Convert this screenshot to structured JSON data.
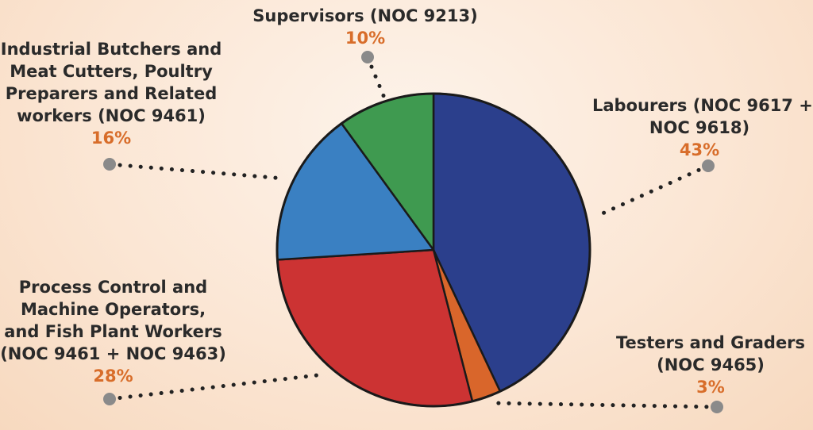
{
  "chart_data": {
    "type": "pie",
    "slices": [
      {
        "label_lines": [
          "Labourers (NOC 9617 +",
          "NOC 9618)"
        ],
        "pct_label": "43%",
        "value": 43,
        "color": "#2b3f8c"
      },
      {
        "label_lines": [
          "Testers and Graders",
          "(NOC 9465)"
        ],
        "pct_label": "3%",
        "value": 3,
        "color": "#d9662b"
      },
      {
        "label_lines": [
          "Process Control and",
          "Machine Operators,",
          "and Fish Plant Workers",
          "(NOC 9461 + NOC 9463)"
        ],
        "pct_label": "28%",
        "value": 28,
        "color": "#cc3333"
      },
      {
        "label_lines": [
          "Industrial Butchers and",
          "Meat Cutters, Poultry",
          "Preparers and Related",
          "workers (NOC 9461)"
        ],
        "pct_label": "16%",
        "value": 16,
        "color": "#3a80c2"
      },
      {
        "label_lines": [
          "Supervisors (NOC 9213)"
        ],
        "pct_label": "10%",
        "value": 10,
        "color": "#3f9a50"
      }
    ],
    "leader_color": "#222222",
    "marker_color": "#8a8a8a",
    "percent_color": "#d86d2a"
  }
}
